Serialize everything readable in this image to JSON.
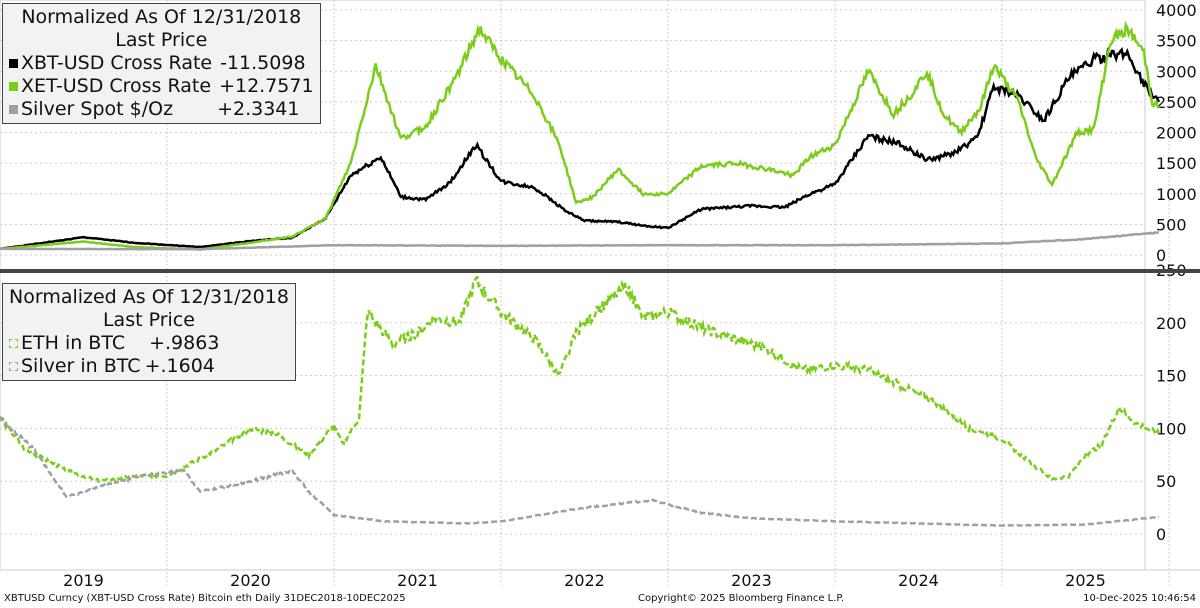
{
  "chart_data": [
    {
      "type": "line",
      "title": "Normalized As Of 12/31/2018",
      "subtitle": "Last Price",
      "ylim": [
        0,
        4000
      ],
      "yticks": [
        0,
        500,
        1000,
        1500,
        2000,
        2500,
        3000,
        3500,
        4000
      ],
      "axis_side": "right",
      "legend_placement": "top-left",
      "grid": true,
      "series": [
        {
          "name": "XBT-USD Cross Rate",
          "last": "-11.5098",
          "color": "#000000",
          "style": "solid",
          "points": [
            [
              2019,
              100
            ],
            [
              2019.5,
              290
            ],
            [
              2019.8,
              200
            ],
            [
              2020.2,
              130
            ],
            [
              2020.5,
              230
            ],
            [
              2020.75,
              280
            ],
            [
              2020.95,
              600
            ],
            [
              2021.1,
              1300
            ],
            [
              2021.28,
              1600
            ],
            [
              2021.4,
              950
            ],
            [
              2021.55,
              900
            ],
            [
              2021.7,
              1200
            ],
            [
              2021.85,
              1800
            ],
            [
              2022,
              1200
            ],
            [
              2022.2,
              1100
            ],
            [
              2022.4,
              700
            ],
            [
              2022.5,
              560
            ],
            [
              2022.7,
              540
            ],
            [
              2022.85,
              480
            ],
            [
              2023,
              440
            ],
            [
              2023.2,
              750
            ],
            [
              2023.5,
              800
            ],
            [
              2023.7,
              780
            ],
            [
              2023.85,
              1000
            ],
            [
              2024,
              1150
            ],
            [
              2024.2,
              1950
            ],
            [
              2024.4,
              1800
            ],
            [
              2024.55,
              1550
            ],
            [
              2024.7,
              1650
            ],
            [
              2024.85,
              1900
            ],
            [
              2024.95,
              2750
            ],
            [
              2025.1,
              2600
            ],
            [
              2025.25,
              2200
            ],
            [
              2025.4,
              2900
            ],
            [
              2025.55,
              3200
            ],
            [
              2025.75,
              3300
            ],
            [
              2025.85,
              2800
            ],
            [
              2025.94,
              2500
            ]
          ]
        },
        {
          "name": "XET-USD Cross Rate",
          "last": "+12.7571",
          "color": "#7ccd1a",
          "style": "solid",
          "points": [
            [
              2019,
              100
            ],
            [
              2019.5,
              220
            ],
            [
              2019.8,
              130
            ],
            [
              2020.2,
              90
            ],
            [
              2020.5,
              200
            ],
            [
              2020.75,
              300
            ],
            [
              2020.95,
              600
            ],
            [
              2021.1,
              1500
            ],
            [
              2021.25,
              3100
            ],
            [
              2021.4,
              1900
            ],
            [
              2021.55,
              2100
            ],
            [
              2021.75,
              3000
            ],
            [
              2021.87,
              3700
            ],
            [
              2022,
              3200
            ],
            [
              2022.2,
              2600
            ],
            [
              2022.35,
              1800
            ],
            [
              2022.45,
              850
            ],
            [
              2022.55,
              950
            ],
            [
              2022.7,
              1400
            ],
            [
              2022.85,
              1000
            ],
            [
              2023,
              1000
            ],
            [
              2023.2,
              1450
            ],
            [
              2023.4,
              1500
            ],
            [
              2023.6,
              1400
            ],
            [
              2023.75,
              1300
            ],
            [
              2023.85,
              1600
            ],
            [
              2024,
              1800
            ],
            [
              2024.2,
              3000
            ],
            [
              2024.35,
              2300
            ],
            [
              2024.45,
              2600
            ],
            [
              2024.55,
              3000
            ],
            [
              2024.65,
              2300
            ],
            [
              2024.75,
              2000
            ],
            [
              2024.87,
              2400
            ],
            [
              2024.95,
              3100
            ],
            [
              2025.1,
              2500
            ],
            [
              2025.2,
              1600
            ],
            [
              2025.3,
              1150
            ],
            [
              2025.45,
              2000
            ],
            [
              2025.55,
              2050
            ],
            [
              2025.65,
              3500
            ],
            [
              2025.75,
              3700
            ],
            [
              2025.85,
              3300
            ],
            [
              2025.9,
              2500
            ],
            [
              2025.94,
              2400
            ]
          ]
        },
        {
          "name": "Silver Spot $/Oz",
          "last": "+2.3341",
          "color": "#a0a0a0",
          "style": "solid",
          "points": [
            [
              2019,
              100
            ],
            [
              2020.2,
              95
            ],
            [
              2021,
              160
            ],
            [
              2022,
              150
            ],
            [
              2023,
              160
            ],
            [
              2024,
              160
            ],
            [
              2025,
              190
            ],
            [
              2025.5,
              260
            ],
            [
              2025.94,
              370
            ]
          ]
        }
      ]
    },
    {
      "type": "line",
      "title": "Normalized As Of 12/31/2018",
      "subtitle": "Last Price",
      "ylim": [
        0,
        250
      ],
      "yticks": [
        0,
        50,
        100,
        150,
        200,
        250
      ],
      "axis_side": "right",
      "legend_placement": "top-left",
      "grid": true,
      "series": [
        {
          "name": "ETH in BTC",
          "last": "+.9863",
          "color": "#7ccd1a",
          "style": "dashed",
          "points": [
            [
              2019,
              110
            ],
            [
              2019.15,
              80
            ],
            [
              2019.4,
              60
            ],
            [
              2019.6,
              50
            ],
            [
              2019.8,
              55
            ],
            [
              2020,
              55
            ],
            [
              2020.3,
              80
            ],
            [
              2020.5,
              100
            ],
            [
              2020.65,
              95
            ],
            [
              2020.85,
              75
            ],
            [
              2021,
              103
            ],
            [
              2021.05,
              85
            ],
            [
              2021.15,
              110
            ],
            [
              2021.2,
              210
            ],
            [
              2021.35,
              180
            ],
            [
              2021.5,
              190
            ],
            [
              2021.6,
              205
            ],
            [
              2021.75,
              200
            ],
            [
              2021.85,
              240
            ],
            [
              2022,
              210
            ],
            [
              2022.2,
              185
            ],
            [
              2022.35,
              150
            ],
            [
              2022.45,
              190
            ],
            [
              2022.6,
              215
            ],
            [
              2022.75,
              235
            ],
            [
              2022.85,
              205
            ],
            [
              2023,
              210
            ],
            [
              2023.2,
              195
            ],
            [
              2023.4,
              185
            ],
            [
              2023.6,
              175
            ],
            [
              2023.8,
              155
            ],
            [
              2024,
              160
            ],
            [
              2024.2,
              155
            ],
            [
              2024.4,
              140
            ],
            [
              2024.6,
              125
            ],
            [
              2024.8,
              100
            ],
            [
              2025,
              90
            ],
            [
              2025.15,
              70
            ],
            [
              2025.3,
              52
            ],
            [
              2025.4,
              55
            ],
            [
              2025.5,
              75
            ],
            [
              2025.6,
              85
            ],
            [
              2025.7,
              120
            ],
            [
              2025.8,
              105
            ],
            [
              2025.94,
              95
            ]
          ]
        },
        {
          "name": "Silver in BTC",
          "last": "+.1604",
          "color": "#a0a0a0",
          "style": "dashed",
          "points": [
            [
              2019,
              110
            ],
            [
              2019.2,
              80
            ],
            [
              2019.4,
              35
            ],
            [
              2019.6,
              45
            ],
            [
              2019.85,
              55
            ],
            [
              2020.1,
              60
            ],
            [
              2020.2,
              40
            ],
            [
              2020.5,
              50
            ],
            [
              2020.75,
              60
            ],
            [
              2020.85,
              40
            ],
            [
              2021,
              18
            ],
            [
              2021.3,
              12
            ],
            [
              2021.8,
              10
            ],
            [
              2022,
              12
            ],
            [
              2022.5,
              25
            ],
            [
              2022.9,
              32
            ],
            [
              2023.2,
              20
            ],
            [
              2023.5,
              15
            ],
            [
              2024,
              12
            ],
            [
              2024.5,
              10
            ],
            [
              2025,
              8
            ],
            [
              2025.5,
              9
            ],
            [
              2025.94,
              16
            ]
          ]
        }
      ]
    }
  ],
  "x_axis": {
    "labels": [
      "2019",
      "2020",
      "2021",
      "2022",
      "2023",
      "2024",
      "2025"
    ]
  },
  "footer": {
    "left": "XBTUSD Curncy (XBT-USD Cross Rate) Bitcoin eth Daily 31DEC2018-10DEC2025",
    "center": "Copyright© 2025 Bloomberg Finance L.P.",
    "right": "10-Dec-2025 10:46:54"
  }
}
